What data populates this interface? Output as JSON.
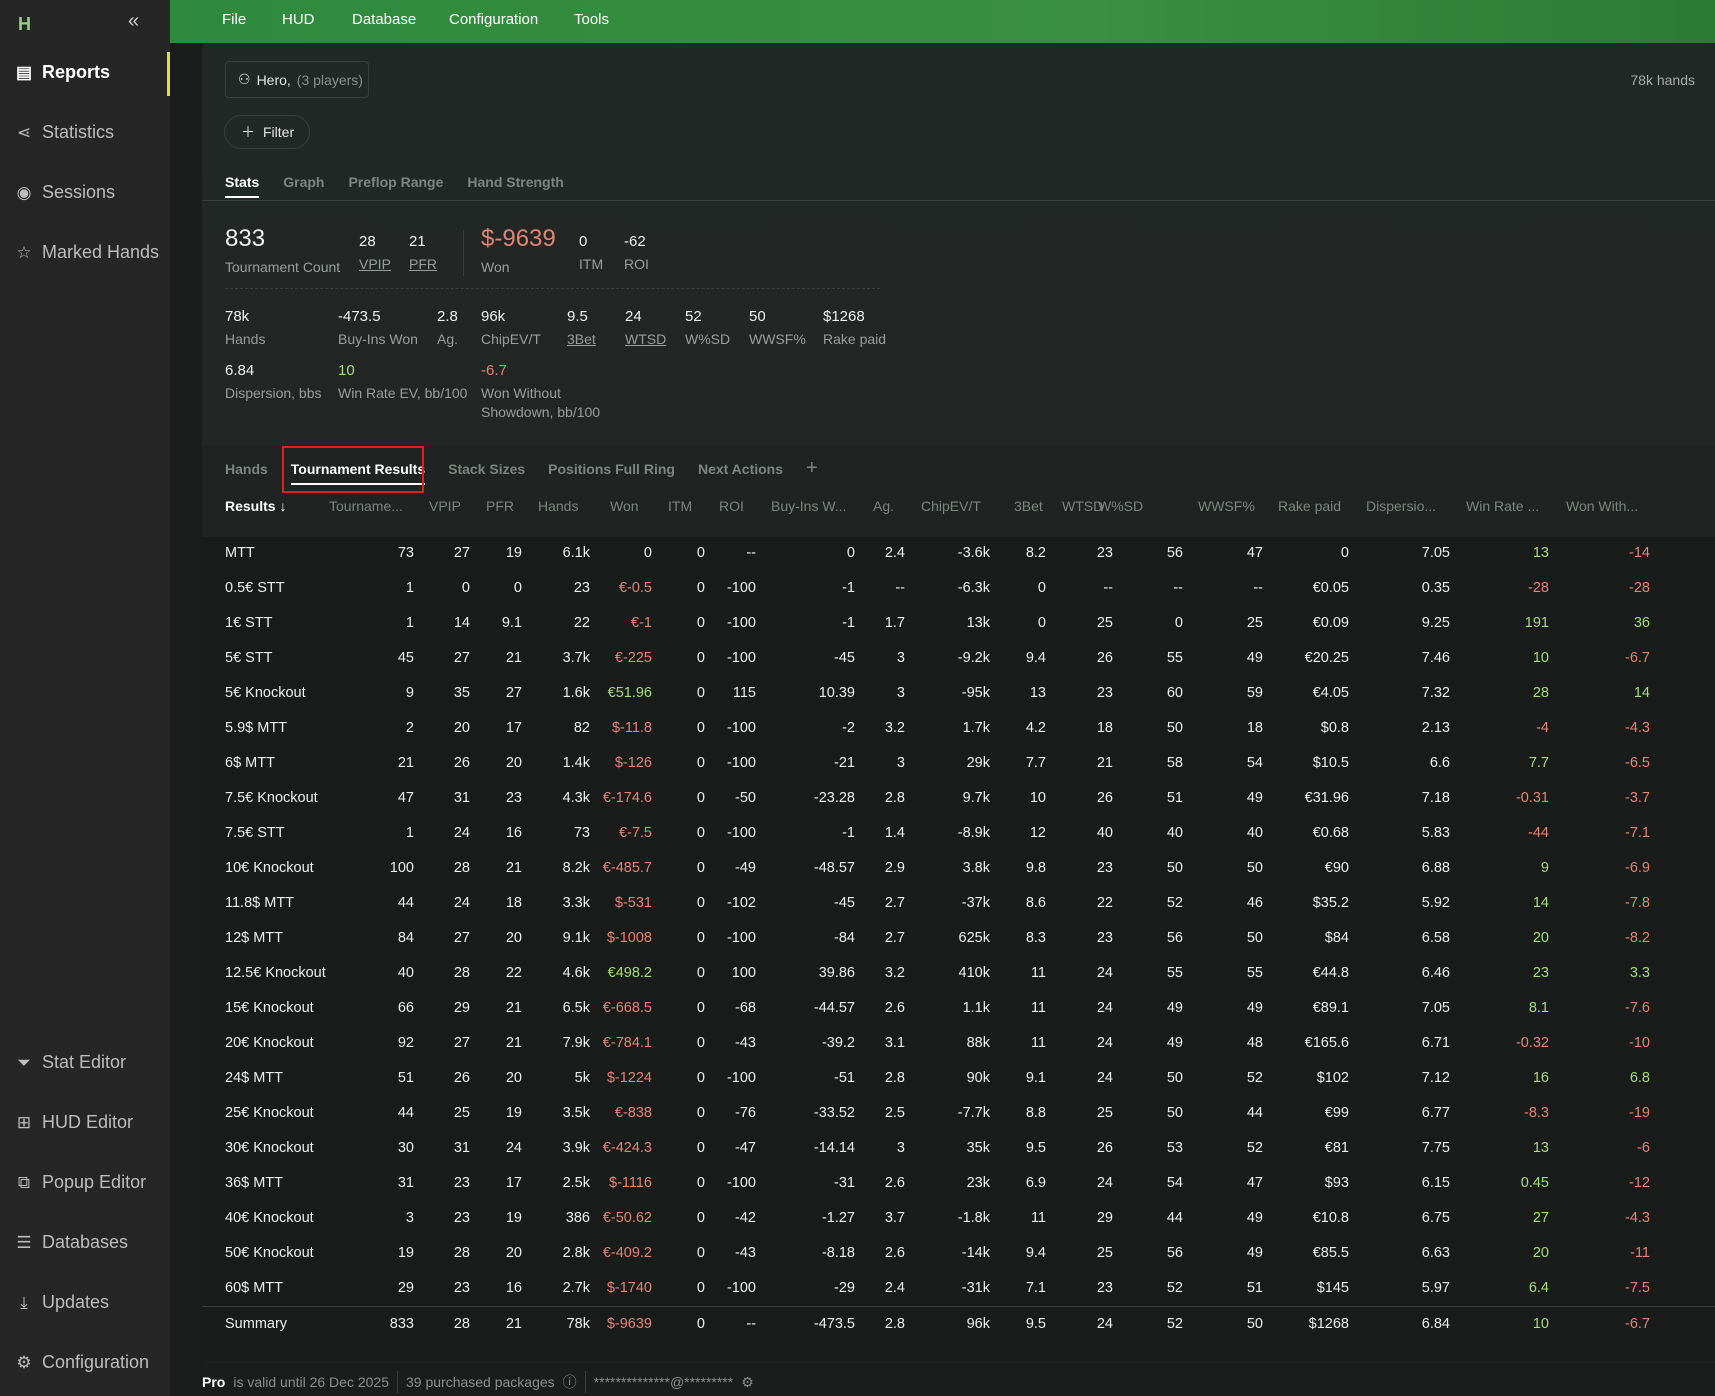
{
  "sidebar": {
    "logo": "H",
    "collapse_icon": "«",
    "items": [
      {
        "label": "Reports",
        "icon": "report-icon"
      },
      {
        "label": "Statistics",
        "icon": "share-graph-icon"
      },
      {
        "label": "Sessions",
        "icon": "broadcast-icon"
      },
      {
        "label": "Marked Hands",
        "icon": "star-list-icon"
      }
    ],
    "bottom_items": [
      {
        "label": "Stat Editor",
        "icon": "filter-icon"
      },
      {
        "label": "HUD Editor",
        "icon": "grid-icon"
      },
      {
        "label": "Popup Editor",
        "icon": "popup-icon"
      },
      {
        "label": "Databases",
        "icon": "database-icon"
      },
      {
        "label": "Updates",
        "icon": "download-icon"
      },
      {
        "label": "Configuration",
        "icon": "gear-icon"
      }
    ]
  },
  "menu": [
    "File",
    "HUD",
    "Database",
    "Configuration",
    "Tools"
  ],
  "player": {
    "name": "Hero,",
    "count": "(3 players)"
  },
  "filter_label": "Filter",
  "hands_count": "78k hands",
  "tabs": [
    "Stats",
    "Graph",
    "Preflop Range",
    "Hand Strength"
  ],
  "summary": {
    "tournament_count": {
      "value": "833",
      "label": "Tournament Count"
    },
    "vpip": {
      "value": "28",
      "label": "VPIP"
    },
    "pfr": {
      "value": "21",
      "label": "PFR"
    },
    "won": {
      "value": "$-9639",
      "label": "Won"
    },
    "itm": {
      "value": "0",
      "label": "ITM"
    },
    "roi": {
      "value": "-62",
      "label": "ROI"
    },
    "hands": {
      "value": "78k",
      "label": "Hands"
    },
    "buyins": {
      "value": "-473.5",
      "label": "Buy-Ins Won"
    },
    "ag": {
      "value": "2.8",
      "label": "Ag."
    },
    "chipev": {
      "value": "96k",
      "label": "ChipEV/T"
    },
    "threebet": {
      "value": "9.5",
      "label": "3Bet"
    },
    "wtsd": {
      "value": "24",
      "label": "WTSD"
    },
    "wsd": {
      "value": "52",
      "label": "W%SD"
    },
    "wwsf": {
      "value": "50",
      "label": "WWSF%"
    },
    "rake": {
      "value": "$1268",
      "label": "Rake paid"
    },
    "dispersion": {
      "value": "6.84",
      "label": "Dispersion, bbs"
    },
    "winrate_ev": {
      "value": "10",
      "label": "Win Rate EV, bb/100"
    },
    "wwsd": {
      "value": "-6.7",
      "label1": "Won Without",
      "label2": "Showdown, bb/100"
    }
  },
  "report_tabs": [
    "Hands",
    "Tournament Results",
    "Stack Sizes",
    "Positions Full Ring",
    "Next Actions"
  ],
  "add_tab": "+",
  "table": {
    "columns": [
      "Results ↓",
      "Tourname...",
      "VPIP",
      "PFR",
      "Hands",
      "Won",
      "ITM",
      "ROI",
      "Buy-Ins W...",
      "Ag.",
      "ChipEV/T",
      "3Bet",
      "WTSD",
      "W%SD",
      "WWSF%",
      "Rake paid",
      "Dispersio...",
      "Win Rate ...",
      "Won With..."
    ],
    "rows": [
      [
        "MTT",
        "73",
        "27",
        "19",
        "6.1k",
        "0",
        "0",
        "--",
        "0",
        "2.4",
        "-3.6k",
        "8.2",
        "23",
        "56",
        "47",
        "0",
        "7.05",
        "13",
        "-14"
      ],
      [
        "0.5€ STT",
        "1",
        "0",
        "0",
        "23",
        "€-0.5",
        "0",
        "-100",
        "-1",
        "--",
        "-6.3k",
        "0",
        "--",
        "--",
        "--",
        "€0.05",
        "0.35",
        "-28",
        "-28"
      ],
      [
        "1€ STT",
        "1",
        "14",
        "9.1",
        "22",
        "€-1",
        "0",
        "-100",
        "-1",
        "1.7",
        "13k",
        "0",
        "25",
        "0",
        "25",
        "€0.09",
        "9.25",
        "191",
        "36"
      ],
      [
        "5€ STT",
        "45",
        "27",
        "21",
        "3.7k",
        "€-225",
        "0",
        "-100",
        "-45",
        "3",
        "-9.2k",
        "9.4",
        "26",
        "55",
        "49",
        "€20.25",
        "7.46",
        "10",
        "-6.7"
      ],
      [
        "5€ Knockout",
        "9",
        "35",
        "27",
        "1.6k",
        "€51.96",
        "0",
        "115",
        "10.39",
        "3",
        "-95k",
        "13",
        "23",
        "60",
        "59",
        "€4.05",
        "7.32",
        "28",
        "14"
      ],
      [
        "5.9$ MTT",
        "2",
        "20",
        "17",
        "82",
        "$-11.8",
        "0",
        "-100",
        "-2",
        "3.2",
        "1.7k",
        "4.2",
        "18",
        "50",
        "18",
        "$0.8",
        "2.13",
        "-4",
        "-4.3"
      ],
      [
        "6$ MTT",
        "21",
        "26",
        "20",
        "1.4k",
        "$-126",
        "0",
        "-100",
        "-21",
        "3",
        "29k",
        "7.7",
        "21",
        "58",
        "54",
        "$10.5",
        "6.6",
        "7.7",
        "-6.5"
      ],
      [
        "7.5€ Knockout",
        "47",
        "31",
        "23",
        "4.3k",
        "€-174.6",
        "0",
        "-50",
        "-23.28",
        "2.8",
        "9.7k",
        "10",
        "26",
        "51",
        "49",
        "€31.96",
        "7.18",
        "-0.31",
        "-3.7"
      ],
      [
        "7.5€ STT",
        "1",
        "24",
        "16",
        "73",
        "€-7.5",
        "0",
        "-100",
        "-1",
        "1.4",
        "-8.9k",
        "12",
        "40",
        "40",
        "40",
        "€0.68",
        "5.83",
        "-44",
        "-7.1"
      ],
      [
        "10€ Knockout",
        "100",
        "28",
        "21",
        "8.2k",
        "€-485.7",
        "0",
        "-49",
        "-48.57",
        "2.9",
        "3.8k",
        "9.8",
        "23",
        "50",
        "50",
        "€90",
        "6.88",
        "9",
        "-6.9"
      ],
      [
        "11.8$ MTT",
        "44",
        "24",
        "18",
        "3.3k",
        "$-531",
        "0",
        "-102",
        "-45",
        "2.7",
        "-37k",
        "8.6",
        "22",
        "52",
        "46",
        "$35.2",
        "5.92",
        "14",
        "-7.8"
      ],
      [
        "12$ MTT",
        "84",
        "27",
        "20",
        "9.1k",
        "$-1008",
        "0",
        "-100",
        "-84",
        "2.7",
        "625k",
        "8.3",
        "23",
        "56",
        "50",
        "$84",
        "6.58",
        "20",
        "-8.2"
      ],
      [
        "12.5€ Knockout",
        "40",
        "28",
        "22",
        "4.6k",
        "€498.2",
        "0",
        "100",
        "39.86",
        "3.2",
        "410k",
        "11",
        "24",
        "55",
        "55",
        "€44.8",
        "6.46",
        "23",
        "3.3"
      ],
      [
        "15€ Knockout",
        "66",
        "29",
        "21",
        "6.5k",
        "€-668.5",
        "0",
        "-68",
        "-44.57",
        "2.6",
        "1.1k",
        "11",
        "24",
        "49",
        "49",
        "€89.1",
        "7.05",
        "8.1",
        "-7.6"
      ],
      [
        "20€ Knockout",
        "92",
        "27",
        "21",
        "7.9k",
        "€-784.1",
        "0",
        "-43",
        "-39.2",
        "3.1",
        "88k",
        "11",
        "24",
        "49",
        "48",
        "€165.6",
        "6.71",
        "-0.32",
        "-10"
      ],
      [
        "24$ MTT",
        "51",
        "26",
        "20",
        "5k",
        "$-1224",
        "0",
        "-100",
        "-51",
        "2.8",
        "90k",
        "9.1",
        "24",
        "50",
        "52",
        "$102",
        "7.12",
        "16",
        "6.8"
      ],
      [
        "25€ Knockout",
        "44",
        "25",
        "19",
        "3.5k",
        "€-838",
        "0",
        "-76",
        "-33.52",
        "2.5",
        "-7.7k",
        "8.8",
        "25",
        "50",
        "44",
        "€99",
        "6.77",
        "-8.3",
        "-19"
      ],
      [
        "30€ Knockout",
        "30",
        "31",
        "24",
        "3.9k",
        "€-424.3",
        "0",
        "-47",
        "-14.14",
        "3",
        "35k",
        "9.5",
        "26",
        "53",
        "52",
        "€81",
        "7.75",
        "13",
        "-6"
      ],
      [
        "36$ MTT",
        "31",
        "23",
        "17",
        "2.5k",
        "$-1116",
        "0",
        "-100",
        "-31",
        "2.6",
        "23k",
        "6.9",
        "24",
        "54",
        "47",
        "$93",
        "6.15",
        "0.45",
        "-12"
      ],
      [
        "40€ Knockout",
        "3",
        "23",
        "19",
        "386",
        "€-50.62",
        "0",
        "-42",
        "-1.27",
        "3.7",
        "-1.8k",
        "11",
        "29",
        "44",
        "49",
        "€10.8",
        "6.75",
        "27",
        "-4.3"
      ],
      [
        "50€ Knockout",
        "19",
        "28",
        "20",
        "2.8k",
        "€-409.2",
        "0",
        "-43",
        "-8.18",
        "2.6",
        "-14k",
        "9.4",
        "25",
        "56",
        "49",
        "€85.5",
        "6.63",
        "20",
        "-11"
      ],
      [
        "60$ MTT",
        "29",
        "23",
        "16",
        "2.7k",
        "$-1740",
        "0",
        "-100",
        "-29",
        "2.4",
        "-31k",
        "7.1",
        "23",
        "52",
        "51",
        "$145",
        "5.97",
        "6.4",
        "-7.5"
      ]
    ],
    "summary_row": [
      "Summary",
      "833",
      "28",
      "21",
      "78k",
      "$-9639",
      "0",
      "--",
      "-473.5",
      "2.8",
      "96k",
      "9.5",
      "24",
      "52",
      "50",
      "$1268",
      "6.84",
      "10",
      "-6.7"
    ]
  },
  "status": {
    "plan": "Pro",
    "valid": "is valid until 26 Dec 2025",
    "packages": "39 purchased packages",
    "info_icon": "ⓘ",
    "email": "**************@*********"
  },
  "colors": {
    "accent": "#3a8f40",
    "negative": "#e38473",
    "positive": "#a6dd7c",
    "highlight_box": "#e0201f"
  }
}
